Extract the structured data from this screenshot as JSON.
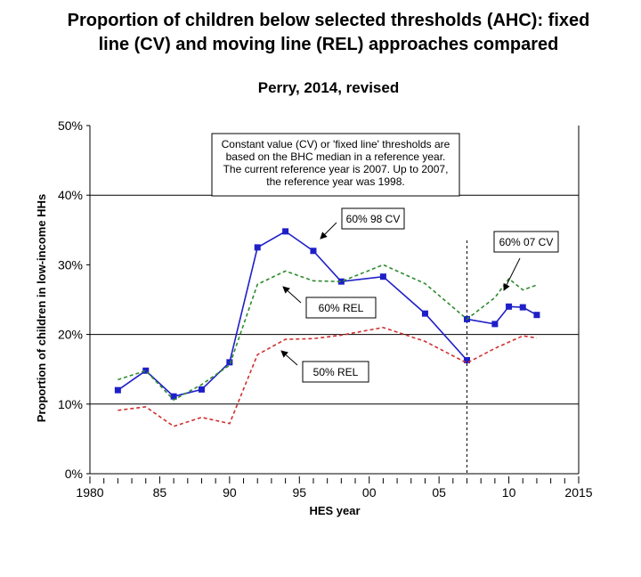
{
  "chart_data": {
    "type": "line",
    "title_line1": "Proportion of children below selected thresholds (AHC):  fixed",
    "title_line2": "line (CV) and moving line (REL) approaches compared",
    "subtitle": "Perry, 2014, revised",
    "xlabel": "HES year",
    "ylabel": "Proportion of children in low-income HHs",
    "xlim": [
      1980,
      2015
    ],
    "ylim": [
      0,
      50
    ],
    "x_ticks": [
      1980,
      1985,
      1990,
      1995,
      2000,
      2005,
      2010,
      2015
    ],
    "x_tick_labels": [
      "1980",
      "85",
      "90",
      "95",
      "00",
      "05",
      "10",
      "2015"
    ],
    "y_ticks": [
      0,
      10,
      20,
      30,
      40,
      50
    ],
    "y_tick_labels": [
      "0%",
      "10%",
      "20%",
      "30%",
      "40%",
      "50%"
    ],
    "gridlines_y": [
      10,
      20,
      40
    ],
    "reference_year_line": 2007,
    "series": [
      {
        "name": "60% 98 CV",
        "color": "#1f1fc8",
        "style": "solid-markers",
        "points": [
          [
            1982,
            12
          ],
          [
            1984,
            14.8
          ],
          [
            1986,
            11.1
          ],
          [
            1988,
            12.1
          ],
          [
            1990,
            16
          ],
          [
            1992,
            32.5
          ],
          [
            1994,
            34.8
          ],
          [
            1996,
            32
          ],
          [
            1998,
            27.6
          ],
          [
            2001,
            28.3
          ],
          [
            2004,
            23
          ],
          [
            2007,
            16.3
          ]
        ]
      },
      {
        "name": "60% 07 CV",
        "color": "#1f1fc8",
        "style": "solid-markers",
        "points": [
          [
            2007,
            22.2
          ],
          [
            2009,
            21.5
          ],
          [
            2010,
            24
          ],
          [
            2011,
            23.9
          ],
          [
            2012,
            22.8
          ]
        ]
      },
      {
        "name": "60% REL",
        "color": "#2e8b2e",
        "style": "dashed",
        "points": [
          [
            1982,
            13.5
          ],
          [
            1984,
            14.8
          ],
          [
            1986,
            10.6
          ],
          [
            1988,
            12.8
          ],
          [
            1990,
            15.6
          ],
          [
            1992,
            27.2
          ],
          [
            1994,
            29.1
          ],
          [
            1996,
            27.7
          ],
          [
            1998,
            27.6
          ],
          [
            2001,
            30
          ],
          [
            2004,
            27.3
          ],
          [
            2007,
            22.2
          ],
          [
            2009,
            25.3
          ],
          [
            2010,
            28
          ],
          [
            2011,
            26.4
          ],
          [
            2012,
            27.1
          ]
        ]
      },
      {
        "name": "50% REL",
        "color": "#d03030",
        "style": "dashed",
        "points": [
          [
            1982,
            9.1
          ],
          [
            1984,
            9.6
          ],
          [
            1986,
            6.8
          ],
          [
            1988,
            8.1
          ],
          [
            1990,
            7.2
          ],
          [
            1992,
            17.1
          ],
          [
            1994,
            19.3
          ],
          [
            1996,
            19.4
          ],
          [
            1998,
            19.9
          ],
          [
            2001,
            21
          ],
          [
            2004,
            19
          ],
          [
            2007,
            15.9
          ],
          [
            2009,
            18
          ],
          [
            2011,
            19.8
          ],
          [
            2012,
            19.5
          ]
        ]
      }
    ],
    "annotations": {
      "note_lines": [
        "Constant value (CV) or 'fixed line' thresholds are",
        "based on the BHC median in a reference year.",
        "The current reference year is 2007.  Up to 2007,",
        "the reference year was 1998."
      ],
      "label_98cv": "60% 98 CV",
      "label_07cv": "60% 07 CV",
      "label_60rel": "60% REL",
      "label_50rel": "50% REL"
    }
  }
}
